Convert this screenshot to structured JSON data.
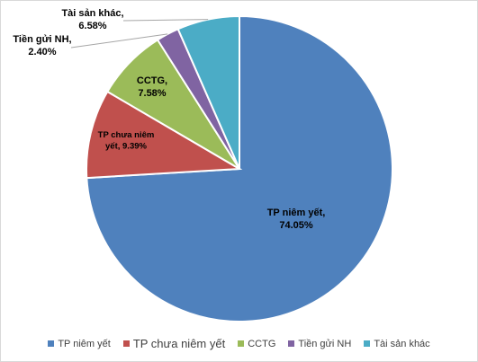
{
  "chart_data": {
    "type": "pie",
    "categories": [
      "TP niêm yết",
      "TP chưa niêm yết",
      "CCTG",
      "Tiền gửi NH",
      "Tài sản khác"
    ],
    "values": [
      74.05,
      9.39,
      7.58,
      2.4,
      6.58
    ],
    "slice_labels": [
      [
        "TP niêm yết,",
        "74.05%"
      ],
      [
        "TP chưa niêm",
        "yết, 9.39%"
      ],
      [
        "CCTG,",
        "7.58%"
      ],
      [
        "Tiền gửi NH,",
        "2.40%"
      ],
      [
        "Tài sản khác,",
        "6.58%"
      ]
    ],
    "colors": [
      "#4f81bd",
      "#c0504d",
      "#9bbb59",
      "#8064a2",
      "#4bacc6"
    ],
    "start": "12 o'clock, clockwise",
    "legend_position": "bottom"
  }
}
